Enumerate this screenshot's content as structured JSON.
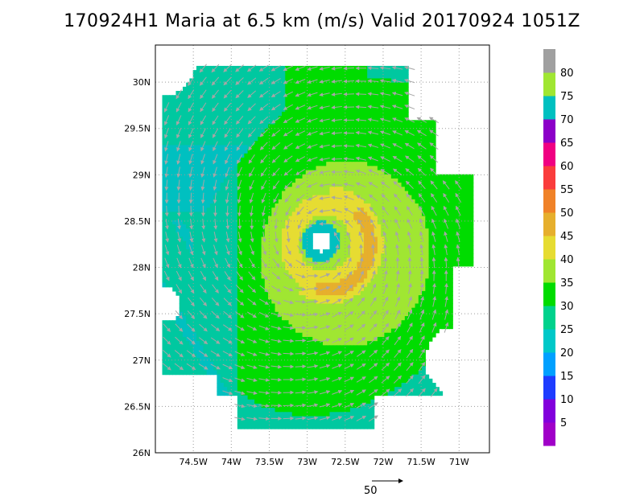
{
  "title": "170924H1 Maria at 6.5 km (m/s) Valid 20170924 1051Z",
  "chart_data": {
    "type": "heatmap",
    "title": "170924H1 Maria at 6.5 km (m/s) Valid 20170924 1051Z",
    "storm": "Maria",
    "level": "6.5 km",
    "units": "m/s",
    "valid_time": "20170924 1051Z",
    "xlim": [
      -75.0,
      -70.6
    ],
    "ylim": [
      26.0,
      30.4
    ],
    "x_ticks": [
      {
        "value": -74.5,
        "label": "74.5W"
      },
      {
        "value": -74.0,
        "label": "74W"
      },
      {
        "value": -73.5,
        "label": "73.5W"
      },
      {
        "value": -73.0,
        "label": "73W"
      },
      {
        "value": -72.5,
        "label": "72.5W"
      },
      {
        "value": -72.0,
        "label": "72W"
      },
      {
        "value": -71.5,
        "label": "71.5W"
      },
      {
        "value": -71.0,
        "label": "71W"
      }
    ],
    "y_ticks": [
      {
        "value": 26.0,
        "label": "26N"
      },
      {
        "value": 26.5,
        "label": "26.5N"
      },
      {
        "value": 27.0,
        "label": "27N"
      },
      {
        "value": 27.5,
        "label": "27.5N"
      },
      {
        "value": 28.0,
        "label": "28N"
      },
      {
        "value": 28.5,
        "label": "28.5N"
      },
      {
        "value": 29.0,
        "label": "29N"
      },
      {
        "value": 29.5,
        "label": "29.5N"
      },
      {
        "value": 30.0,
        "label": "30N"
      }
    ],
    "grid": true,
    "center": {
      "lon": -72.82,
      "lat": 28.28
    },
    "colorbar": {
      "labels": [
        "5",
        "10",
        "15",
        "20",
        "25",
        "30",
        "35",
        "40",
        "45",
        "50",
        "55",
        "60",
        "65",
        "70",
        "75",
        "80"
      ],
      "colors": [
        "#a000c8",
        "#8200dc",
        "#1e3cff",
        "#00a0ff",
        "#00c8c8",
        "#00d28c",
        "#00dc00",
        "#a0e632",
        "#e6dc32",
        "#e6af2d",
        "#f08228",
        "#fa3c3c",
        "#f00082",
        "#8c00c8",
        "#00c0c0",
        "#a0e632",
        "#a0a0a0"
      ]
    },
    "wind_vector_scale": {
      "label": "50",
      "value": 50
    }
  }
}
